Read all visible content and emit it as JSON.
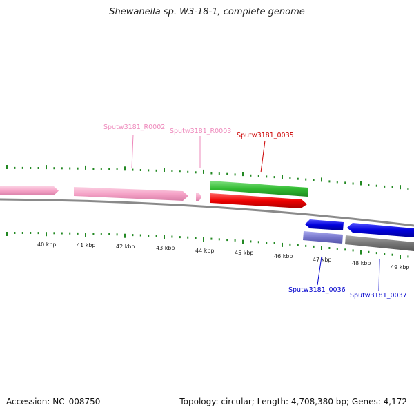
{
  "title": "Shewanella sp. W3-18-1, complete genome",
  "footer": {
    "accession": "Accession: NC_008750",
    "topology": "Topology: circular; Length: 4,708,380 bp; Genes: 4,172"
  },
  "scale": {
    "labels": [
      "40 kbp",
      "41 kbp",
      "42 kbp",
      "43 kbp",
      "44 kbp",
      "45 kbp",
      "46 kbp",
      "47 kbp",
      "48 kbp",
      "49 kbp"
    ]
  },
  "gene_labels": [
    {
      "text": "Sputw3181_R0002",
      "color": "#ee88bb"
    },
    {
      "text": "Sputw3181_R0003",
      "color": "#ee88bb"
    },
    {
      "text": "Sputw3181_0035",
      "color": "#cc0000"
    },
    {
      "text": "Sputw3181_0036",
      "color": "#0000cc"
    },
    {
      "text": "Sputw3181_0037",
      "color": "#0000cc"
    }
  ],
  "colors": {
    "backbone": "#8a8a8a",
    "rna": "#f5a3c7",
    "red_gene": "#ee0000",
    "green_gene": "#33bb33",
    "blue_gene": "#0000dd",
    "lavender_gene": "#7777cc",
    "gray_gene": "#777777",
    "tick": "#228822"
  }
}
